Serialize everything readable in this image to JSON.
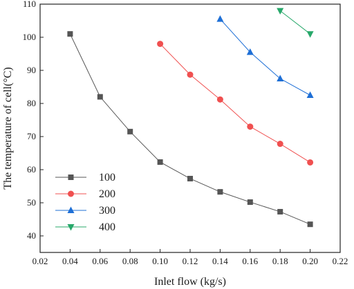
{
  "chart_data": {
    "type": "line",
    "title": "",
    "xlabel": "Inlet flow (kg/s)",
    "ylabel": "The temperature of cell(°C)",
    "xlim": [
      0.02,
      0.22
    ],
    "ylim": [
      35,
      110
    ],
    "xticks": [
      "0.02",
      "0.04",
      "0.06",
      "0.08",
      "0.10",
      "0.12",
      "0.14",
      "0.16",
      "0.18",
      "0.20",
      "0.22"
    ],
    "yticks": [
      "40",
      "50",
      "60",
      "70",
      "80",
      "90",
      "100",
      "110"
    ],
    "grid": false,
    "legend_position": "bottom-left",
    "series": [
      {
        "name": "100",
        "color": "#555555",
        "marker": "square",
        "x": [
          0.04,
          0.06,
          0.08,
          0.1,
          0.12,
          0.14,
          0.16,
          0.18,
          0.2
        ],
        "y": [
          101.0,
          82.0,
          71.5,
          62.3,
          57.3,
          53.3,
          50.2,
          47.3,
          43.5
        ]
      },
      {
        "name": "200",
        "color": "#f05050",
        "marker": "circle",
        "x": [
          0.1,
          0.12,
          0.14,
          0.16,
          0.18,
          0.2
        ],
        "y": [
          98.0,
          88.7,
          81.2,
          73.0,
          67.8,
          62.2
        ]
      },
      {
        "name": "300",
        "color": "#1e6fd6",
        "marker": "triangle-up",
        "x": [
          0.14,
          0.16,
          0.18,
          0.2
        ],
        "y": [
          105.5,
          95.5,
          87.5,
          82.5
        ]
      },
      {
        "name": "400",
        "color": "#27a86a",
        "marker": "triangle-down",
        "x": [
          0.18,
          0.2
        ],
        "y": [
          108.0,
          101.0
        ]
      }
    ]
  }
}
